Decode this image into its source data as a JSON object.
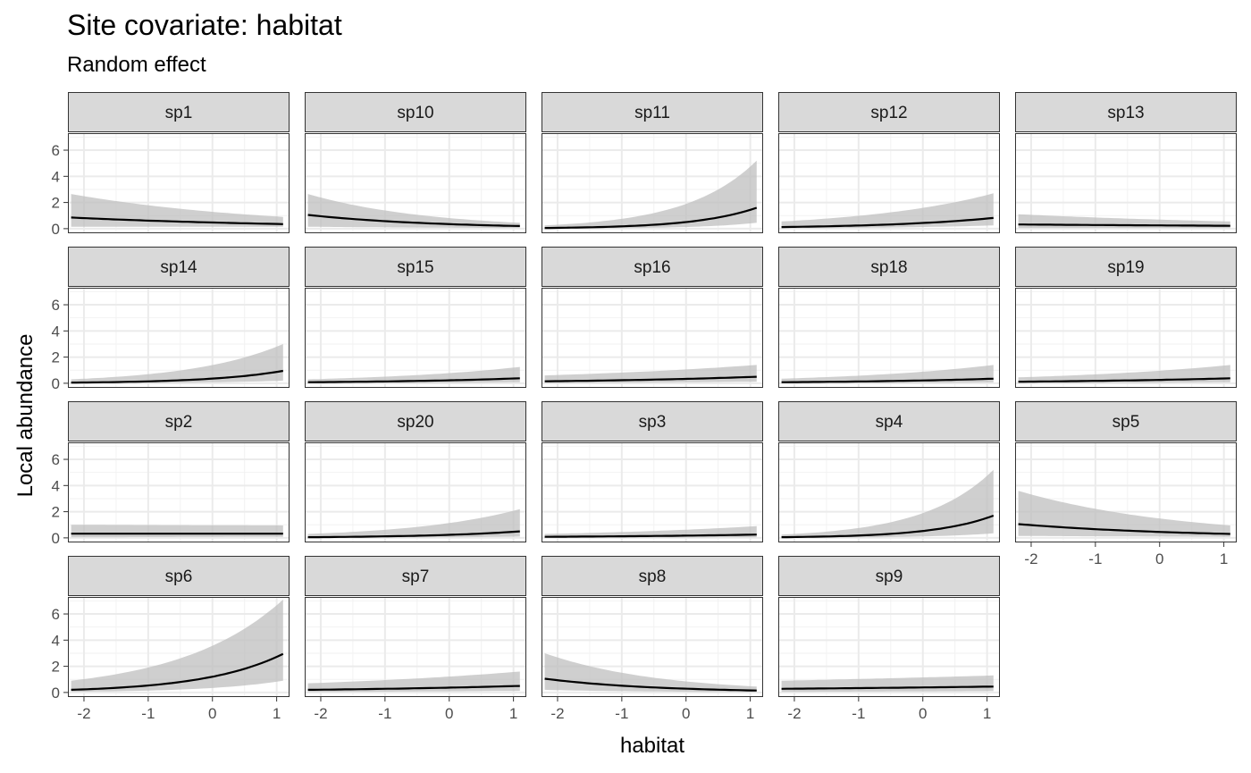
{
  "chart_data": {
    "type": "line",
    "title": "Site covariate: habitat",
    "subtitle": "Random effect",
    "xlabel": "habitat",
    "ylabel": "Local abundance",
    "xlim": [
      -2.25,
      1.2
    ],
    "ylim": [
      -0.35,
      7.3
    ],
    "x_ticks": [
      -2,
      -1,
      0,
      1
    ],
    "x_tick_labels": [
      "-2",
      "-1",
      "0",
      "1"
    ],
    "y_ticks": [
      0,
      2,
      4,
      6
    ],
    "y_tick_labels": [
      "0",
      "2",
      "4",
      "6"
    ],
    "x_range": [
      -2.2,
      1.1
    ],
    "grid": true,
    "panel_layout": {
      "columns": 5,
      "rows": 4
    },
    "line_color": "#000000",
    "ribbon_color": "#bfbfbf",
    "strip_fill": "#d9d9d9",
    "panels": [
      {
        "name": "sp1",
        "mean": [
          0.85,
          0.35
        ],
        "lower": [
          0.15,
          0.15
        ],
        "upper": [
          2.65,
          0.9
        ]
      },
      {
        "name": "sp10",
        "mean": [
          1.05,
          0.2
        ],
        "lower": [
          0.15,
          0.05
        ],
        "upper": [
          2.65,
          0.45
        ]
      },
      {
        "name": "sp11",
        "mean": [
          0.05,
          1.6
        ],
        "lower": [
          0.01,
          0.45
        ],
        "upper": [
          0.25,
          5.2
        ]
      },
      {
        "name": "sp12",
        "mean": [
          0.12,
          0.82
        ],
        "lower": [
          0.03,
          0.25
        ],
        "upper": [
          0.55,
          2.7
        ]
      },
      {
        "name": "sp13",
        "mean": [
          0.32,
          0.22
        ],
        "lower": [
          0.05,
          0.05
        ],
        "upper": [
          1.1,
          0.55
        ]
      },
      {
        "name": "sp14",
        "mean": [
          0.05,
          0.95
        ],
        "lower": [
          0.01,
          0.2
        ],
        "upper": [
          0.3,
          3.0
        ]
      },
      {
        "name": "sp15",
        "mean": [
          0.08,
          0.38
        ],
        "lower": [
          0.01,
          0.08
        ],
        "upper": [
          0.3,
          1.25
        ]
      },
      {
        "name": "sp16",
        "mean": [
          0.15,
          0.5
        ],
        "lower": [
          0.03,
          0.12
        ],
        "upper": [
          0.6,
          1.4
        ]
      },
      {
        "name": "sp18",
        "mean": [
          0.08,
          0.35
        ],
        "lower": [
          0.01,
          0.07
        ],
        "upper": [
          0.35,
          1.4
        ]
      },
      {
        "name": "sp19",
        "mean": [
          0.12,
          0.38
        ],
        "lower": [
          0.02,
          0.08
        ],
        "upper": [
          0.45,
          1.4
        ]
      },
      {
        "name": "sp2",
        "mean": [
          0.32,
          0.32
        ],
        "lower": [
          0.05,
          0.08
        ],
        "upper": [
          1.0,
          0.95
        ]
      },
      {
        "name": "sp20",
        "mean": [
          0.05,
          0.5
        ],
        "lower": [
          0.01,
          0.1
        ],
        "upper": [
          0.3,
          2.2
        ]
      },
      {
        "name": "sp3",
        "mean": [
          0.08,
          0.25
        ],
        "lower": [
          0.01,
          0.05
        ],
        "upper": [
          0.3,
          0.9
        ]
      },
      {
        "name": "sp4",
        "mean": [
          0.05,
          1.7
        ],
        "lower": [
          0.01,
          0.35
        ],
        "upper": [
          0.25,
          5.2
        ]
      },
      {
        "name": "sp5",
        "mean": [
          1.05,
          0.3
        ],
        "lower": [
          0.15,
          0.08
        ],
        "upper": [
          3.6,
          0.95
        ]
      },
      {
        "name": "sp6",
        "mean": [
          0.2,
          2.95
        ],
        "lower": [
          0.05,
          0.9
        ],
        "upper": [
          0.9,
          7.1
        ]
      },
      {
        "name": "sp7",
        "mean": [
          0.2,
          0.5
        ],
        "lower": [
          0.04,
          0.12
        ],
        "upper": [
          0.7,
          1.6
        ]
      },
      {
        "name": "sp8",
        "mean": [
          1.05,
          0.15
        ],
        "lower": [
          0.2,
          0.03
        ],
        "upper": [
          3.0,
          0.45
        ]
      },
      {
        "name": "sp9",
        "mean": [
          0.28,
          0.45
        ],
        "lower": [
          0.05,
          0.1
        ],
        "upper": [
          0.9,
          1.3
        ]
      }
    ]
  }
}
